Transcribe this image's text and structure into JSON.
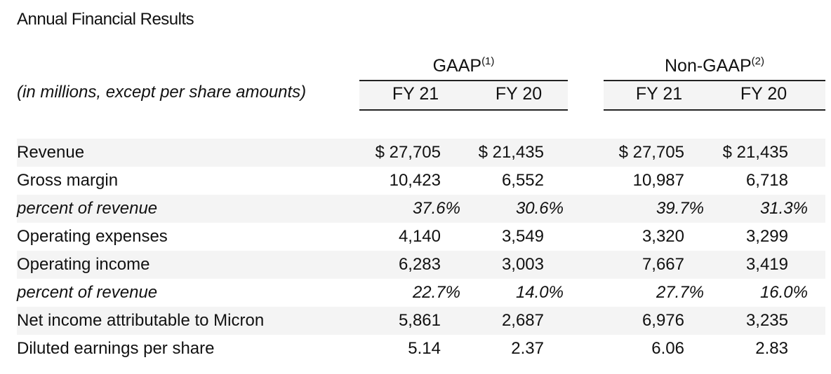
{
  "title": "Annual Financial Results",
  "groups": {
    "gaap": {
      "label": "GAAP",
      "note": "(1)"
    },
    "non_gaap": {
      "label": "Non-GAAP",
      "note": "(2)"
    }
  },
  "units_label": "(in millions, except per share amounts)",
  "columns": [
    "FY 21",
    "FY 20",
    "FY 21",
    "FY 20"
  ],
  "rows": [
    {
      "label": "Revenue",
      "values": [
        "$ 27,705",
        "$ 21,435",
        "$ 27,705",
        "$ 21,435"
      ]
    },
    {
      "label": "Gross margin",
      "values": [
        "10,423",
        "6,552",
        "10,987",
        "6,718"
      ]
    },
    {
      "label": "percent of revenue",
      "values": [
        "37.6%",
        "30.6%",
        "39.7%",
        "31.3%"
      ]
    },
    {
      "label": "Operating expenses",
      "values": [
        "4,140",
        "3,549",
        "3,320",
        "3,299"
      ]
    },
    {
      "label": "Operating income",
      "values": [
        "6,283",
        "3,003",
        "7,667",
        "3,419"
      ]
    },
    {
      "label": "percent of revenue",
      "values": [
        "22.7%",
        "14.0%",
        "27.7%",
        "16.0%"
      ]
    },
    {
      "label": "Net income attributable to Micron",
      "values": [
        "5,861",
        "2,687",
        "6,976",
        "3,235"
      ]
    },
    {
      "label": "Diluted earnings per share",
      "values": [
        "5.14",
        "2.37",
        "6.06",
        "2.83"
      ]
    }
  ]
}
